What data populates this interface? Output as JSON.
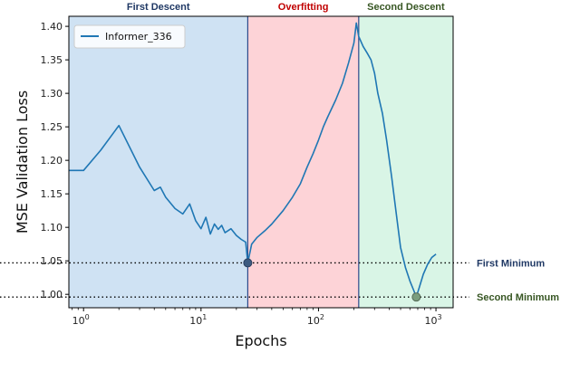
{
  "chart_data": {
    "type": "line",
    "xlabel": "Epochs",
    "ylabel": "MSE Validation Loss",
    "xscale": "log",
    "xlim": [
      0.75,
      1400
    ],
    "ylim": [
      0.98,
      1.415
    ],
    "x_ticks": [
      {
        "value": 1,
        "base": "10",
        "exp": "0"
      },
      {
        "value": 10,
        "base": "10",
        "exp": "1"
      },
      {
        "value": 100,
        "base": "10",
        "exp": "2"
      },
      {
        "value": 1000,
        "base": "10",
        "exp": "3"
      }
    ],
    "y_ticks": [
      "1.00",
      "1.05",
      "1.10",
      "1.15",
      "1.20",
      "1.25",
      "1.30",
      "1.35",
      "1.40"
    ],
    "legend": {
      "position": "top-left",
      "entries": [
        "Informer_336"
      ]
    },
    "regions": [
      {
        "label": "First Descent",
        "x_start": 0.75,
        "x_end": 25,
        "fill": "#cfe2f3",
        "text_color": "#1f3864"
      },
      {
        "label": "Overfitting",
        "x_start": 25,
        "x_end": 220,
        "fill": "#fdd3d7",
        "text_color": "#c00000"
      },
      {
        "label": "Second Descent",
        "x_start": 220,
        "x_end": 1400,
        "fill": "#d9f5e6",
        "text_color": "#375623"
      }
    ],
    "reference_lines": [
      {
        "label": "First Minimum",
        "y": 1.047,
        "x_min": 25,
        "color": "#1f3864"
      },
      {
        "label": "Second Minimum",
        "y": 0.996,
        "x_min": 680,
        "color": "#375623"
      }
    ],
    "series": [
      {
        "name": "Informer_336",
        "color": "#1f77b4",
        "x": [
          0.75,
          1,
          1.4,
          2,
          3,
          4,
          4.5,
          5,
          6,
          7,
          8,
          9,
          10,
          11,
          12,
          13,
          14,
          15,
          16,
          18,
          20,
          22,
          24,
          25,
          27,
          30,
          35,
          40,
          50,
          60,
          70,
          80,
          90,
          100,
          110,
          120,
          140,
          160,
          180,
          200,
          210,
          220,
          240,
          260,
          280,
          300,
          320,
          350,
          380,
          420,
          460,
          500,
          550,
          600,
          650,
          680,
          720,
          780,
          850,
          920,
          1000
        ],
        "y": [
          1.185,
          1.185,
          1.215,
          1.252,
          1.19,
          1.155,
          1.16,
          1.145,
          1.128,
          1.12,
          1.135,
          1.11,
          1.098,
          1.115,
          1.09,
          1.105,
          1.097,
          1.103,
          1.092,
          1.098,
          1.088,
          1.082,
          1.078,
          1.047,
          1.075,
          1.085,
          1.095,
          1.105,
          1.125,
          1.145,
          1.165,
          1.19,
          1.21,
          1.23,
          1.25,
          1.265,
          1.29,
          1.315,
          1.345,
          1.375,
          1.405,
          1.385,
          1.37,
          1.36,
          1.35,
          1.33,
          1.3,
          1.27,
          1.23,
          1.175,
          1.12,
          1.07,
          1.04,
          1.02,
          1.005,
          0.996,
          1.01,
          1.03,
          1.045,
          1.055,
          1.06
        ]
      }
    ]
  }
}
